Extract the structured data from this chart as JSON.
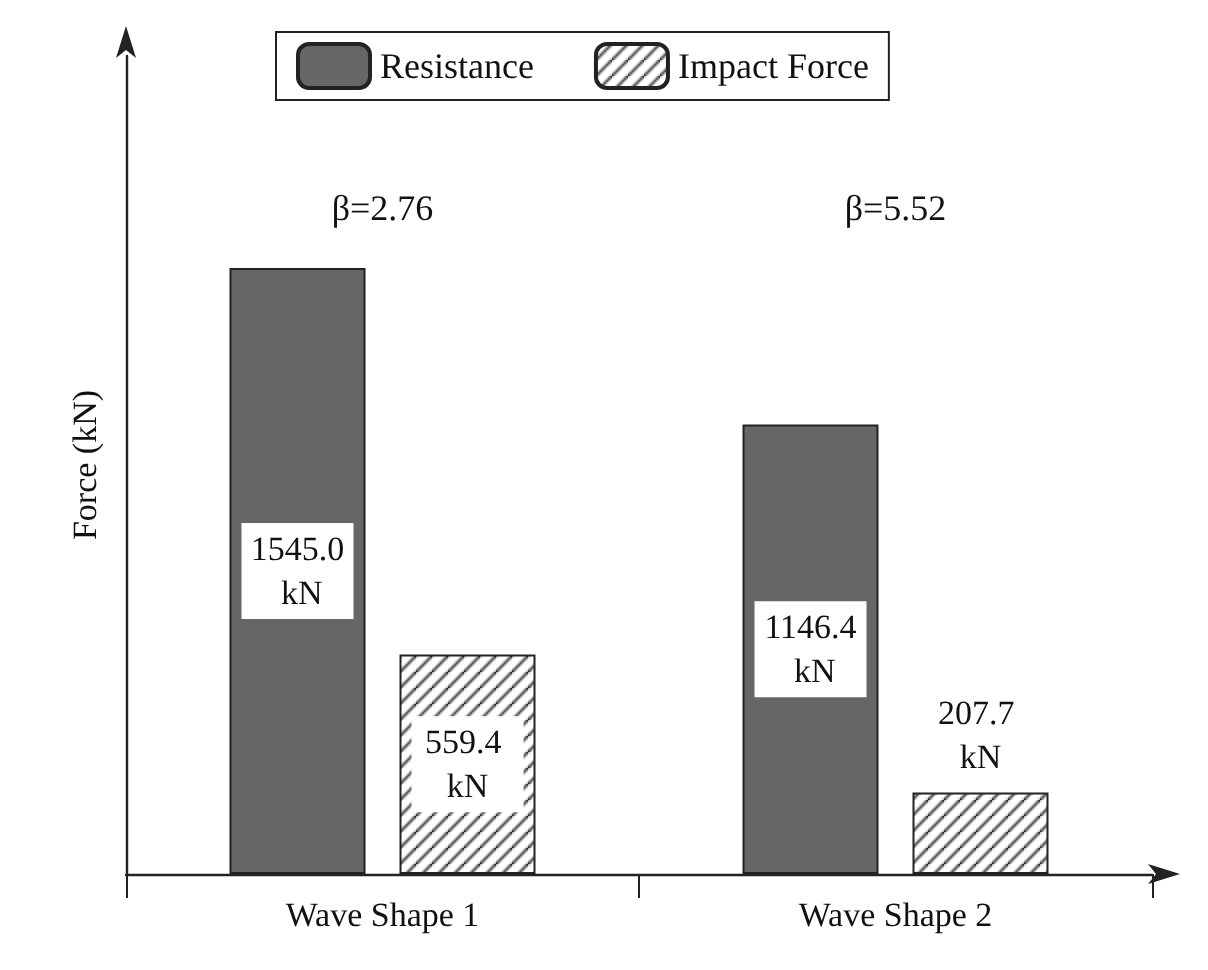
{
  "chart_data": {
    "type": "bar",
    "ylabel": "Force (kN)",
    "categories": [
      "Wave Shape 1",
      "Wave Shape 2"
    ],
    "series": [
      {
        "name": "Resistance",
        "color": "#666666",
        "values": [
          1545.0,
          1146.4
        ],
        "value_labels": [
          "1545.0 kN",
          "1146.4 kN"
        ]
      },
      {
        "name": "Impact Force",
        "color": "#222222",
        "values": [
          559.4,
          207.7
        ],
        "value_labels": [
          "559.4 kN",
          "207.7 kN"
        ]
      }
    ],
    "annotations": [
      "β=2.76",
      "β=5.52"
    ],
    "legend": "top",
    "grid": false,
    "tick_labels": "x"
  }
}
